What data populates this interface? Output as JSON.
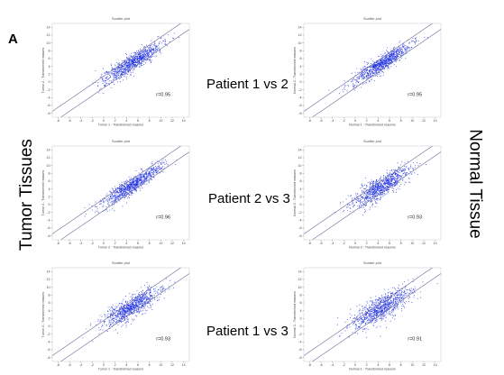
{
  "panel_letter": "A",
  "left_label": "Tumor Tissues",
  "right_label": "Normal Tissue",
  "row_labels": [
    "Patient 1 vs 2",
    "Patient 2 vs 3",
    "Patient 1 vs 3"
  ],
  "colors": {
    "points": "#1e2fe0",
    "fit_line": "#6e6e9a",
    "axis": "#444444"
  },
  "chart_data": [
    {
      "type": "scatter",
      "title": "Scatter plot",
      "xlabel": "Tumor 1 - Transformed reasons",
      "ylabel": "Tumor 2 - Transformed reasons",
      "r_label": "r=0.95",
      "x_ticks": [
        -8,
        -6,
        -4,
        -2,
        0,
        2,
        4,
        6,
        8,
        10,
        12,
        14
      ],
      "y_ticks": [
        -8,
        -6,
        -4,
        -2,
        0,
        2,
        4,
        6,
        8,
        10,
        12,
        14
      ],
      "xlim": [
        -9,
        15
      ],
      "ylim": [
        -9,
        15
      ],
      "center": [
        5,
        5
      ],
      "spread": 2.4,
      "noise": 1.1,
      "n_points": 900,
      "seed": 11
    },
    {
      "type": "scatter",
      "title": "Scatter plot",
      "xlabel": "Normal 1 - Transformed reasons",
      "ylabel": "Normal 2 - Transformed reasons",
      "r_label": "r=0.95",
      "x_ticks": [
        -8,
        -6,
        -4,
        -2,
        0,
        2,
        4,
        6,
        8,
        10,
        12,
        14
      ],
      "y_ticks": [
        -8,
        -6,
        -4,
        -2,
        0,
        2,
        4,
        6,
        8,
        10,
        12,
        14
      ],
      "xlim": [
        -9,
        15
      ],
      "ylim": [
        -9,
        15
      ],
      "center": [
        4.5,
        4.5
      ],
      "spread": 2.5,
      "noise": 1.0,
      "n_points": 900,
      "seed": 23
    },
    {
      "type": "scatter",
      "title": "Scatter plot",
      "xlabel": "Tumor 2 - Transformed reasons",
      "ylabel": "Tumor 3 - Transformed reasons",
      "r_label": "r=0.96",
      "x_ticks": [
        -8,
        -6,
        -4,
        -2,
        0,
        2,
        4,
        6,
        8,
        10,
        12,
        14
      ],
      "y_ticks": [
        -8,
        -6,
        -4,
        -2,
        0,
        2,
        4,
        6,
        8,
        10,
        12,
        14
      ],
      "xlim": [
        -9,
        15
      ],
      "ylim": [
        -9,
        15
      ],
      "center": [
        5,
        5
      ],
      "spread": 2.5,
      "noise": 1.0,
      "n_points": 900,
      "seed": 37
    },
    {
      "type": "scatter",
      "title": "Scatter plot",
      "xlabel": "Normal 2 - Transformed reasons",
      "ylabel": "Normal 3 - Transformed reasons",
      "r_label": "r=0.93",
      "x_ticks": [
        -8,
        -6,
        -4,
        -2,
        0,
        2,
        4,
        6,
        8,
        10,
        12,
        14
      ],
      "y_ticks": [
        -8,
        -6,
        -4,
        -2,
        0,
        2,
        4,
        6,
        8,
        10,
        12,
        14
      ],
      "xlim": [
        -9,
        15
      ],
      "ylim": [
        -9,
        15
      ],
      "center": [
        4.5,
        4.5
      ],
      "spread": 2.4,
      "noise": 1.4,
      "n_points": 900,
      "seed": 41
    },
    {
      "type": "scatter",
      "title": "Scatter plot",
      "xlabel": "Tumor 1 - Transformed reasons",
      "ylabel": "Tumor 3 - Transformed reasons",
      "r_label": "r=0.93",
      "x_ticks": [
        -8,
        -6,
        -4,
        -2,
        0,
        2,
        4,
        6,
        8,
        10,
        12,
        14
      ],
      "y_ticks": [
        -8,
        -6,
        -4,
        -2,
        0,
        2,
        4,
        6,
        8,
        10,
        12,
        14
      ],
      "xlim": [
        -9,
        15
      ],
      "ylim": [
        -9,
        15
      ],
      "center": [
        5,
        5
      ],
      "spread": 2.4,
      "noise": 1.4,
      "n_points": 900,
      "seed": 53
    },
    {
      "type": "scatter",
      "title": "Scatter plot",
      "xlabel": "Normal 1 - Transformed reasons",
      "ylabel": "Normal 3 - Transformed reasons",
      "r_label": "r=0.91",
      "x_ticks": [
        -8,
        -6,
        -4,
        -2,
        0,
        2,
        4,
        6,
        8,
        10,
        12,
        14
      ],
      "y_ticks": [
        -8,
        -6,
        -4,
        -2,
        0,
        2,
        4,
        6,
        8,
        10,
        12,
        14
      ],
      "xlim": [
        -9,
        15
      ],
      "ylim": [
        -9,
        15
      ],
      "center": [
        4.5,
        4.5
      ],
      "spread": 2.4,
      "noise": 1.6,
      "n_points": 900,
      "seed": 67
    }
  ]
}
